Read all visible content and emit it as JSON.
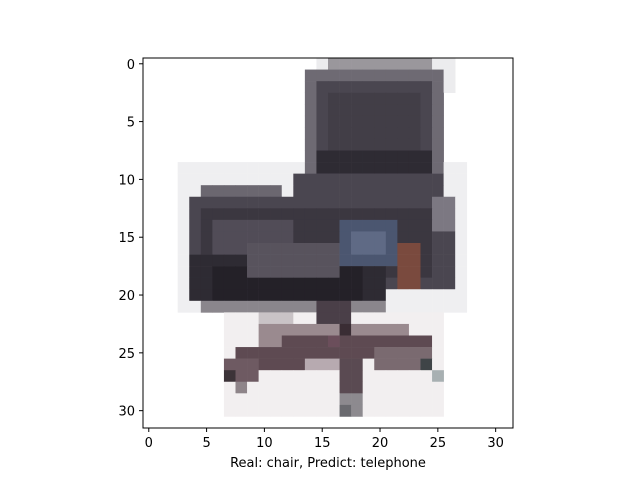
{
  "figure": {
    "xlabel": "Real: chair, Predict: telephone"
  },
  "axes": {
    "x_ticks": [
      "0",
      "5",
      "10",
      "15",
      "20",
      "25",
      "30"
    ],
    "y_ticks": [
      "0",
      "5",
      "10",
      "15",
      "20",
      "25",
      "30"
    ],
    "x_range": [
      -0.5,
      31.5
    ],
    "y_range": [
      -0.5,
      31.5
    ]
  },
  "image": {
    "subject": "office chair",
    "resolution": [
      32,
      32
    ],
    "colors": {
      "background": "#ffffff",
      "seat_dark": "#2e2b33",
      "seat_mid": "#4a4650",
      "seat_light": "#6e6a73",
      "base_brown": "#5e4a52",
      "base_light": "#9a8a8f",
      "accent_blue": "#4b5670",
      "accent_brown": "#7a4a3e"
    }
  }
}
